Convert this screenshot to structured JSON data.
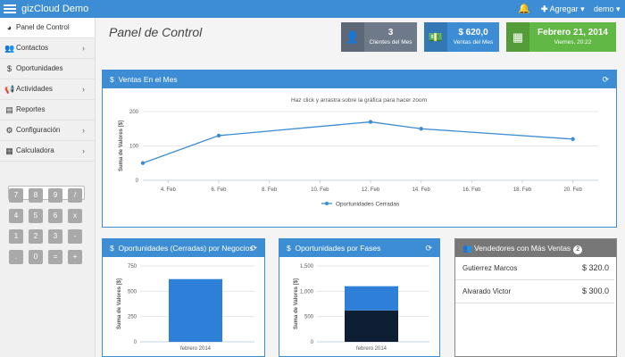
{
  "topbar": {
    "app_title": "gizCloud Demo",
    "add_label": "Agregar",
    "user_label": "demo"
  },
  "sidebar": {
    "items": [
      {
        "label": "Panel de Control",
        "icon": "dashboard-icon",
        "chevron": false
      },
      {
        "label": "Contactos",
        "icon": "users-icon",
        "chevron": true
      },
      {
        "label": "Oportunidades",
        "icon": "dollar-icon",
        "chevron": false
      },
      {
        "label": "Actividades",
        "icon": "megaphone-icon",
        "chevron": true
      },
      {
        "label": "Reportes",
        "icon": "file-icon",
        "chevron": false
      },
      {
        "label": "Configuración",
        "icon": "gear-icon",
        "chevron": true
      },
      {
        "label": "Calculadora",
        "icon": "grid-icon",
        "chevron": true
      }
    ]
  },
  "calculator": {
    "keys": [
      "7",
      "8",
      "9",
      "/",
      "4",
      "5",
      "6",
      "x",
      "1",
      "2",
      "3",
      "-",
      ".",
      "0",
      "=",
      "+"
    ]
  },
  "page_title": "Panel de Control",
  "stats": [
    {
      "big": "3",
      "small": "Clientes del Mes",
      "color": "#6e7a8a",
      "icon": "user-icon"
    },
    {
      "big": "$ 620,0",
      "small": "Ventas del Mes",
      "color": "#3c8dd4",
      "icon": "money-icon"
    },
    {
      "big": "Febrero 21, 2014",
      "small": "Viernes, 20:22",
      "color": "#62b844",
      "icon": "calendar-icon"
    }
  ],
  "sales_panel": {
    "title": "Ventas En el Mes",
    "hint": "Haz click y arrastra sobre la gráfica para hacer zoom"
  },
  "panel_business": {
    "title": "Oportunidades (Cerradas) por Negocios"
  },
  "panel_phases": {
    "title": "Oportunidades por Fases"
  },
  "panel_sellers": {
    "title": "Vendedores con Más Ventas",
    "badge": "2",
    "rows": [
      {
        "name": "Gutierrez Marcos",
        "value": "$ 320.0"
      },
      {
        "name": "Alvarado Victor",
        "value": "$ 300.0"
      }
    ]
  },
  "chart_data": [
    {
      "type": "line",
      "title": "",
      "xlabel": "",
      "ylabel": "Suma de Valores [$]",
      "x_ticks": [
        "4. Feb",
        "6. Feb",
        "8. Feb",
        "10. Feb",
        "12. Feb",
        "14. Feb",
        "16. Feb",
        "18. Feb",
        "20. Feb"
      ],
      "x_range": [
        3,
        21
      ],
      "ylim": [
        0,
        200
      ],
      "y_ticks": [
        "0",
        "100",
        "200"
      ],
      "series": [
        {
          "name": "Oportunidades Cerradas",
          "x": [
            3,
            6,
            12,
            14,
            20
          ],
          "y": [
            50,
            130,
            170,
            150,
            120
          ],
          "color": "#3c8dd4"
        }
      ]
    },
    {
      "type": "bar",
      "ylabel": "Suma de Valores [$]",
      "categories": [
        "febrero 2014"
      ],
      "ylim": [
        0,
        750
      ],
      "y_ticks": [
        "0",
        "250",
        "500",
        "750"
      ],
      "values": [
        620
      ],
      "color": "#2e7fd8"
    },
    {
      "type": "bar",
      "stacked": true,
      "ylabel": "Suma de Valores [$]",
      "categories": [
        "febrero 2014"
      ],
      "ylim": [
        0,
        1500
      ],
      "y_ticks": [
        "0",
        "500",
        "1,000",
        "1,500"
      ],
      "series": [
        {
          "values": [
            620
          ],
          "color": "#0e1e33"
        },
        {
          "values": [
            480
          ],
          "color": "#2e7fd8"
        }
      ]
    }
  ]
}
